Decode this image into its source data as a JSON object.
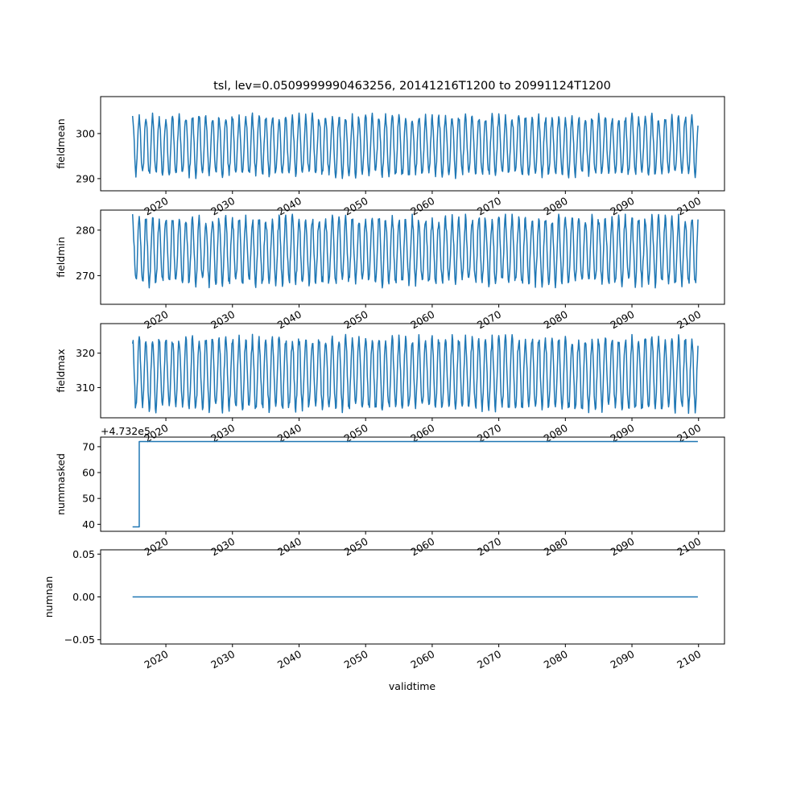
{
  "figure": {
    "title": "tsl, lev=0.0509999990463256, 20141216T1200 to 20991124T1200",
    "xlabel": "validtime"
  },
  "colors": {
    "series": "#1f77b4",
    "axes": "#000000",
    "background": "#ffffff"
  },
  "chart_data": [
    {
      "type": "line",
      "ylabel": "fieldmean",
      "xlim": [
        2010.2,
        2103.9
      ],
      "ylim": [
        287.3,
        308.2
      ],
      "yticks": [
        290,
        300
      ],
      "xticks": [
        "2020",
        "2030",
        "2040",
        "2050",
        "2060",
        "2070",
        "2080",
        "2090",
        "2100"
      ],
      "x_range": [
        2015.0,
        2099.9
      ],
      "series": [
        {
          "kind": "seasonal",
          "points_per_year": 12,
          "center": 297.3,
          "amplitude": 6.3,
          "noise": 1.0,
          "min": 288.2,
          "max": 307.2
        }
      ]
    },
    {
      "type": "line",
      "ylabel": "fieldmin",
      "xlim": [
        2010.2,
        2103.9
      ],
      "ylim": [
        263.7,
        284.4
      ],
      "yticks": [
        270,
        280
      ],
      "xticks": [
        "2020",
        "2030",
        "2040",
        "2050",
        "2060",
        "2070",
        "2080",
        "2090",
        "2100"
      ],
      "x_range": [
        2015.0,
        2099.9
      ],
      "series": [
        {
          "kind": "seasonal",
          "points_per_year": 12,
          "center": 275.5,
          "amplitude": 7.0,
          "noise": 1.2,
          "min": 264.6,
          "max": 283.5
        }
      ]
    },
    {
      "type": "line",
      "ylabel": "fieldmax",
      "xlim": [
        2010.2,
        2103.9
      ],
      "ylim": [
        301.2,
        328.6
      ],
      "yticks": [
        310,
        320
      ],
      "xticks": [
        "2020",
        "2030",
        "2040",
        "2050",
        "2060",
        "2070",
        "2080",
        "2090",
        "2100"
      ],
      "x_range": [
        2015.0,
        2099.9
      ],
      "series": [
        {
          "kind": "seasonal",
          "points_per_year": 12,
          "center": 314.0,
          "amplitude": 10.0,
          "noise": 1.5,
          "min": 302.4,
          "max": 327.3
        }
      ]
    },
    {
      "type": "line",
      "ylabel": "nummasked",
      "offset_text": "+4.732e5",
      "xlim": [
        2010.2,
        2103.9
      ],
      "ylim": [
        37.3,
        73.7
      ],
      "yticks": [
        40,
        50,
        60,
        70
      ],
      "xticks": [
        "2020",
        "2030",
        "2040",
        "2050",
        "2060",
        "2070",
        "2080",
        "2090",
        "2100"
      ],
      "series": [
        {
          "kind": "points",
          "x": [
            2015.0,
            2016.0,
            2016.0,
            2099.9
          ],
          "y": [
            39,
            39,
            72,
            72
          ]
        }
      ]
    },
    {
      "type": "line",
      "ylabel": "numnan",
      "xlim": [
        2010.2,
        2103.9
      ],
      "ylim": [
        -0.055,
        0.055
      ],
      "yticks": [
        0.05,
        0.0,
        -0.05
      ],
      "ytick_labels": [
        "0.05",
        "0.00",
        "−0.05"
      ],
      "xticks": [
        "2020",
        "2030",
        "2040",
        "2050",
        "2060",
        "2070",
        "2080",
        "2090",
        "2100"
      ],
      "series": [
        {
          "kind": "points",
          "x": [
            2015.0,
            2099.9
          ],
          "y": [
            0,
            0
          ]
        }
      ]
    }
  ]
}
